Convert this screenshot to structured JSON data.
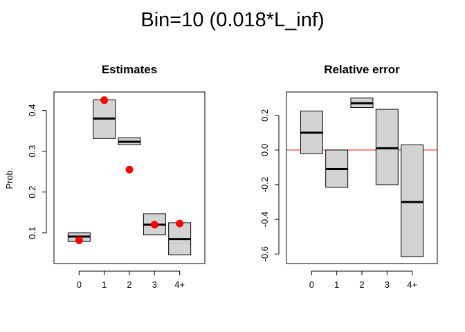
{
  "title": "Bin=10 (0.018*L_inf)",
  "colors": {
    "box_fill": "#d3d3d3",
    "point": "#ff0000",
    "ref_line": "#ff0000"
  },
  "chart_data": [
    {
      "type": "boxplot",
      "title": "Estimates",
      "xlabel": "",
      "ylabel": "Prob.",
      "categories": [
        "0",
        "1",
        "2",
        "3",
        "4+"
      ],
      "ylim": [
        0.025,
        0.445
      ],
      "yticks": [
        0.1,
        0.2,
        0.3,
        0.4
      ],
      "ytick_labels": [
        "0.1",
        "0.2",
        "0.3",
        "0.4"
      ],
      "boxes": [
        {
          "low": 0.079,
          "median": 0.091,
          "high": 0.1
        },
        {
          "low": 0.331,
          "median": 0.38,
          "high": 0.426
        },
        {
          "low": 0.316,
          "median": 0.323,
          "high": 0.333
        },
        {
          "low": 0.095,
          "median": 0.12,
          "high": 0.147
        },
        {
          "low": 0.046,
          "median": 0.085,
          "high": 0.125
        }
      ],
      "points": [
        0.082,
        0.425,
        0.255,
        0.12,
        0.123
      ],
      "grid": false
    },
    {
      "type": "boxplot",
      "title": "Relative error",
      "xlabel": "",
      "ylabel": "",
      "categories": [
        "0",
        "1",
        "2",
        "3",
        "4+"
      ],
      "ylim": [
        -0.655,
        0.335
      ],
      "yticks": [
        -0.6,
        -0.4,
        -0.2,
        0.0,
        0.2
      ],
      "ytick_labels": [
        "-0.6",
        "-0.4",
        "-0.2",
        "0.0",
        "0.2"
      ],
      "boxes": [
        {
          "low": -0.02,
          "median": 0.1,
          "high": 0.225
        },
        {
          "low": -0.215,
          "median": -0.11,
          "high": 0.0
        },
        {
          "low": 0.245,
          "median": 0.27,
          "high": 0.3
        },
        {
          "low": -0.2,
          "median": 0.01,
          "high": 0.235
        },
        {
          "low": -0.615,
          "median": -0.3,
          "high": 0.03
        }
      ],
      "reference_line": 0.0,
      "grid": false
    }
  ]
}
